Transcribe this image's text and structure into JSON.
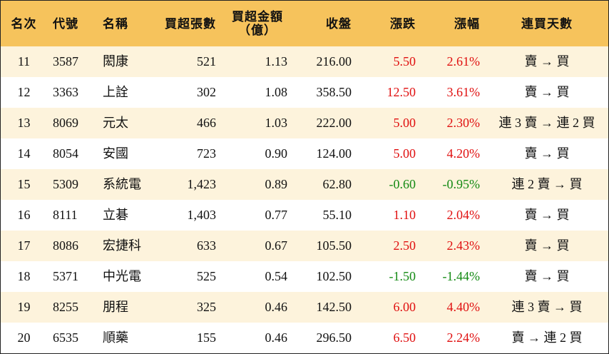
{
  "table": {
    "header": [
      "名次",
      "代號",
      "名稱",
      "買超張數",
      "買超金額\n（億）",
      "收盤",
      "漲跌",
      "漲幅",
      "連買天數"
    ],
    "rows": [
      [
        "11",
        "3587",
        "閎康",
        "521",
        "1.13",
        "216.00",
        "5.50",
        "2.61%",
        "賣 → 買"
      ],
      [
        "12",
        "3363",
        "上詮",
        "302",
        "1.08",
        "358.50",
        "12.50",
        "3.61%",
        "賣 → 買"
      ],
      [
        "13",
        "8069",
        "元太",
        "466",
        "1.03",
        "222.00",
        "5.00",
        "2.30%",
        "連 3 賣 → 連 2 買"
      ],
      [
        "14",
        "8054",
        "安國",
        "723",
        "0.90",
        "124.00",
        "5.00",
        "4.20%",
        "賣 → 買"
      ],
      [
        "15",
        "5309",
        "系統電",
        "1,423",
        "0.89",
        "62.80",
        "-0.60",
        "-0.95%",
        "連 2 賣 → 買"
      ],
      [
        "16",
        "8111",
        "立碁",
        "1,403",
        "0.77",
        "55.10",
        "1.10",
        "2.04%",
        "賣 → 買"
      ],
      [
        "17",
        "8086",
        "宏捷科",
        "633",
        "0.67",
        "105.50",
        "2.50",
        "2.43%",
        "賣 → 買"
      ],
      [
        "18",
        "5371",
        "中光電",
        "525",
        "0.54",
        "102.50",
        "-1.50",
        "-1.44%",
        "賣 → 買"
      ],
      [
        "19",
        "8255",
        "朋程",
        "325",
        "0.46",
        "142.50",
        "6.00",
        "4.40%",
        "連 3 賣 → 買"
      ],
      [
        "20",
        "6535",
        "順藥",
        "155",
        "0.46",
        "296.50",
        "6.50",
        "2.24%",
        "賣 → 連 2 買"
      ]
    ]
  }
}
